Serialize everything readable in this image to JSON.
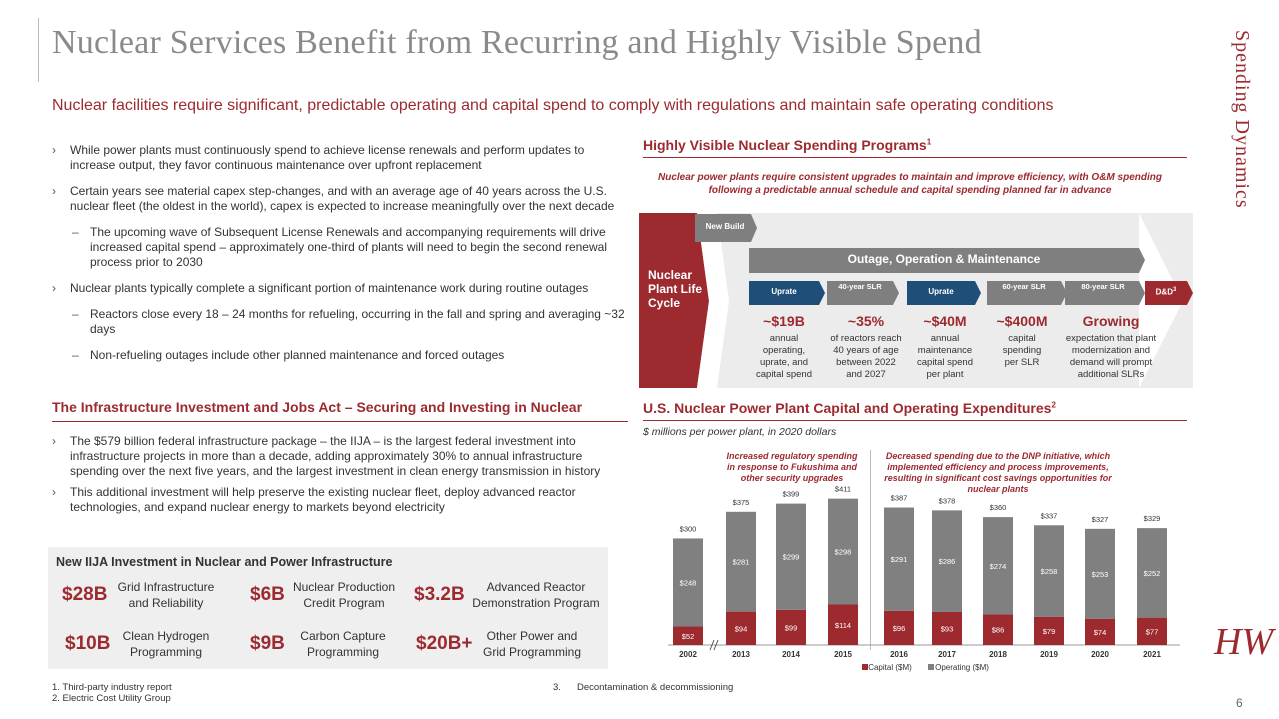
{
  "title": "Nuclear Services Benefit from Recurring and Highly Visible Spend",
  "side_label": "Spending Dynamics",
  "subtitle": "Nuclear facilities require significant, predictable operating and capital spend to comply with regulations and maintain safe operating conditions",
  "left_bullets": [
    {
      "level": 1,
      "text": "While power plants must continuously spend to achieve license renewals and perform updates to increase output, they favor continuous maintenance over upfront replacement"
    },
    {
      "level": 1,
      "text": "Certain years see material capex step-changes, and with an average age of 40 years across the U.S. nuclear fleet (the oldest in the world), capex is expected to increase meaningfully over the next decade"
    },
    {
      "level": 2,
      "text": "The upcoming wave of Subsequent License Renewals and accompanying requirements will drive increased capital spend – approximately one-third of plants will need to begin the second renewal process prior to 2030"
    },
    {
      "level": 1,
      "text": "Nuclear plants typically complete a significant portion of maintenance work during routine outages"
    },
    {
      "level": 2,
      "text": "Reactors close every 18 – 24 months for refueling, occurring in the fall and spring and averaging ~32 days"
    },
    {
      "level": 2,
      "text": "Non-refueling outages include other planned maintenance and forced outages"
    }
  ],
  "iija_section": {
    "heading": "The Infrastructure Investment and Jobs Act – Securing and Investing in Nuclear",
    "bullets": [
      "The $579 billion federal infrastructure package – the IIJA – is the largest federal investment into infrastructure projects in more than a decade, adding approximately 30% to annual infrastructure spending over the next five years, and the largest investment in clean energy transmission in history",
      "This additional investment will help preserve the existing nuclear fleet, deploy advanced reactor technologies, and expand nuclear energy to markets beyond electricity"
    ],
    "box_title": "New IIJA Investment in Nuclear and Power Infrastructure",
    "items": [
      {
        "value": "$28B",
        "label": "Grid Infrastructure and Reliability"
      },
      {
        "value": "$6B",
        "label": "Nuclear Production Credit Program"
      },
      {
        "value": "$3.2B",
        "label": "Advanced Reactor Demonstration Program"
      },
      {
        "value": "$10B",
        "label": "Clean Hydrogen Programming"
      },
      {
        "value": "$9B",
        "label": "Carbon Capture Programming"
      },
      {
        "value": "$20B+",
        "label": "Other Power and Grid Programming"
      }
    ]
  },
  "programs": {
    "heading": "Highly Visible Nuclear Spending Programs",
    "heading_sup": "1",
    "italic_text": "Nuclear power plants require consistent upgrades to maintain and improve efficiency, with O&M spending following a predictable annual schedule and capital spending planned far in advance",
    "lifecycle_label": "Nuclear Plant Life Cycle",
    "new_build": "New Build",
    "om_label": "Outage, Operation & Maintenance",
    "stages": [
      "Uprate",
      "40-year SLR",
      "Uprate",
      "60-year SLR",
      "80-year SLR",
      "D&D"
    ],
    "stage_sup": "3",
    "stats": [
      {
        "value": "~$19B",
        "desc": "annual operating, uprate, and capital spend"
      },
      {
        "value": "~35%",
        "desc": "of reactors reach 40 years of age between 2022 and 2027"
      },
      {
        "value": "~$40M",
        "desc": "annual maintenance capital spend per plant"
      },
      {
        "value": "~$400M",
        "desc": "capital spending per SLR"
      },
      {
        "value": "Growing",
        "desc": "expectation that plant modernization and demand will prompt additional SLRs"
      }
    ]
  },
  "chart_heading": "U.S. Nuclear Power Plant Capital and Operating Expenditures",
  "chart_heading_sup": "2",
  "chart_subtitle": "$ millions per power plant, in 2020 dollars",
  "chart_annotations": [
    "Increased regulatory spending in response to Fukushima and other security upgrades",
    "Decreased spending due to the DNP initiative, which implemented efficiency and process improvements, resulting in significant cost savings opportunities for nuclear plants"
  ],
  "chart_data": {
    "type": "bar",
    "stacked": true,
    "categories": [
      "2002",
      "2013",
      "2014",
      "2015",
      "2016",
      "2017",
      "2018",
      "2019",
      "2020",
      "2021"
    ],
    "series": [
      {
        "name": "Capital ($M)",
        "color": "#9c2a2f",
        "values": [
          52,
          94,
          99,
          114,
          96,
          93,
          86,
          79,
          74,
          77
        ],
        "labels": [
          "$52",
          "$94",
          "$99",
          "$114",
          "$96",
          "$93",
          "$86",
          "$79",
          "$74",
          "$77"
        ]
      },
      {
        "name": "Operating ($M)",
        "color": "#808080",
        "values": [
          248,
          281,
          299,
          298,
          291,
          286,
          274,
          258,
          253,
          252
        ],
        "labels": [
          "$248",
          "$281",
          "$299",
          "$298",
          "$291",
          "$286",
          "$274",
          "$258",
          "$253",
          "$252"
        ]
      }
    ],
    "totals": [
      "$300",
      "$375",
      "$399",
      "$411",
      "$387",
      "$378",
      "$360",
      "$337",
      "$327",
      "$329"
    ],
    "title": "U.S. Nuclear Power Plant Capital and Operating Expenditures",
    "ylabel": "$ millions per power plant, in 2020 dollars",
    "ylim": [
      0,
      450
    ],
    "axis_break_after": "2002",
    "legend": "bottom-center"
  },
  "footnotes": [
    "1. Third-party industry report",
    "2. Electric Cost Utility Group"
  ],
  "footnote3": {
    "num": "3.",
    "text": "Decontamination & decommissioning"
  },
  "page_number": "6",
  "logo_text": "HW",
  "colors": {
    "accent": "#9c2a2f",
    "gray_bar": "#808080",
    "panel": "#ececec"
  }
}
